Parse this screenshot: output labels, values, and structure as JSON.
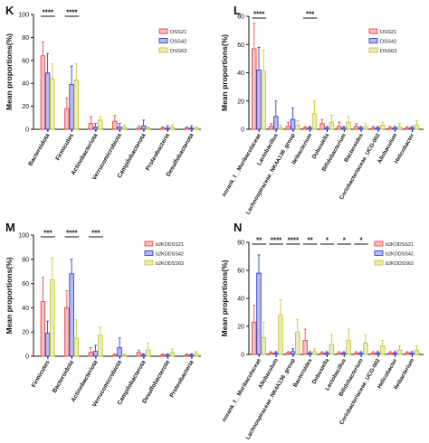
{
  "colors": {
    "dss21": "#e8474c",
    "dss42": "#2d3fd6",
    "dss63": "#c8c63a"
  },
  "chart_data": [
    {
      "panel": "K",
      "type": "bar",
      "ylabel": "Mean proportions(%)",
      "ylim": [
        0,
        100
      ],
      "yticks": [
        "0",
        "20",
        "40",
        "60",
        "80",
        "100"
      ],
      "categories": [
        "Bacteroidota",
        "Firmicutes",
        "Actinobacteriota",
        "Verrucomicrobiota",
        "Campilobacterota",
        "Proteobacteria",
        "Desulfobacterota"
      ],
      "series": [
        {
          "name": "DSS21",
          "values": [
            64,
            18,
            5,
            7,
            1,
            1,
            1
          ],
          "errors": [
            12,
            9,
            6,
            5,
            2,
            1,
            1
          ]
        },
        {
          "name": "DSS42",
          "values": [
            49,
            39,
            2,
            2,
            3,
            1,
            1
          ],
          "errors": [
            17,
            16,
            3,
            3,
            5,
            2,
            2
          ]
        },
        {
          "name": "DSS63",
          "values": [
            44,
            43,
            8,
            2,
            1,
            2,
            1
          ],
          "errors": [
            13,
            14,
            3,
            2,
            1,
            2,
            1
          ]
        }
      ],
      "significance": [
        {
          "text": "****",
          "from": 0,
          "to": 0
        },
        {
          "text": "****",
          "from": 1,
          "to": 1
        }
      ],
      "legend": "top-right"
    },
    {
      "panel": "L",
      "type": "bar",
      "ylabel": "Mean proportions(%)",
      "ylim": [
        0,
        80
      ],
      "yticks": [
        "0",
        "20",
        "40",
        "60",
        "80"
      ],
      "categories": [
        "norank_f__Muribaculaceae",
        "Lactobacillus",
        "Lachnospiraceae_NK4A136_group",
        "Ileibacterium",
        "Dubosiella",
        "Bifidobacterium",
        "Bacteroides",
        "Coriobacteriaceae_UCG-002",
        "Allobaculum",
        "Helicobacter"
      ],
      "series": [
        {
          "name": "DSS21",
          "values": [
            57,
            2,
            2,
            1,
            4,
            2,
            2,
            1,
            1,
            1
          ],
          "errors": [
            18,
            2,
            3,
            1,
            3,
            3,
            2,
            1,
            1,
            1
          ]
        },
        {
          "name": "DSS42",
          "values": [
            42,
            9,
            7,
            1,
            1,
            1,
            1,
            1,
            1,
            1
          ],
          "errors": [
            16,
            11,
            8,
            1,
            1,
            1,
            1,
            1,
            1,
            1
          ]
        },
        {
          "name": "DSS63",
          "values": [
            41,
            1,
            3,
            11,
            5,
            5,
            2,
            3,
            2,
            3
          ],
          "errors": [
            15,
            2,
            3,
            9,
            5,
            4,
            2,
            2,
            2,
            3
          ]
        }
      ],
      "significance": [
        {
          "text": "****",
          "from": 0,
          "to": 0
        },
        {
          "text": "***",
          "from": 3,
          "to": 3
        }
      ],
      "legend": "top-right"
    },
    {
      "panel": "M",
      "type": "bar",
      "ylabel": "Mean proportions(%)",
      "ylim": [
        0,
        100
      ],
      "yticks": [
        "0",
        "20",
        "40",
        "60",
        "80",
        "100"
      ],
      "categories": [
        "Firmicutes",
        "Bacteroidota",
        "Actinobacteriota",
        "Verrucomicrobiota",
        "Campilobacterota",
        "Desulfobacterota",
        "Proteobacteria"
      ],
      "series": [
        {
          "name": "b2KODSS21",
          "values": [
            45,
            40,
            3,
            1,
            3,
            1,
            1
          ],
          "errors": [
            20,
            14,
            4,
            1,
            2,
            1,
            1
          ]
        },
        {
          "name": "b2KODSS42",
          "values": [
            19,
            68,
            4,
            7,
            1,
            1,
            1
          ],
          "errors": [
            10,
            12,
            5,
            8,
            1,
            1,
            1
          ]
        },
        {
          "name": "b2KODSS63",
          "values": [
            63,
            15,
            17,
            1,
            5,
            3,
            2
          ],
          "errors": [
            18,
            15,
            7,
            1,
            6,
            3,
            2
          ]
        }
      ],
      "significance": [
        {
          "text": "***",
          "from": 0,
          "to": 0
        },
        {
          "text": "****",
          "from": 1,
          "to": 1
        },
        {
          "text": "***",
          "from": 2,
          "to": 2
        }
      ],
      "legend": "top-right"
    },
    {
      "panel": "N",
      "type": "bar",
      "ylabel": "Mean proportions(%)",
      "ylim": [
        0,
        80
      ],
      "yticks": [
        "0",
        "20",
        "40",
        "60",
        "80"
      ],
      "categories": [
        "norank_f__Muribaculaceae",
        "Allobaculum",
        "Lachnospiraceae_NK4A136_group",
        "Bacteroides",
        "Dubosiella",
        "Lactobacillus",
        "Bifidobacterium",
        "Coriobacteriaceae_UCG-002",
        "Helicobacter",
        "Ileibacterium"
      ],
      "series": [
        {
          "name": "b2KODSS21",
          "values": [
            23,
            1,
            1,
            10,
            1,
            1,
            1,
            1,
            1,
            1
          ],
          "errors": [
            12,
            1,
            1,
            8,
            1,
            1,
            1,
            1,
            1,
            1
          ]
        },
        {
          "name": "b2KODSS42",
          "values": [
            58,
            1,
            2,
            1,
            1,
            1,
            1,
            1,
            1,
            1
          ],
          "errors": [
            13,
            1,
            2,
            1,
            1,
            1,
            1,
            1,
            1,
            1
          ]
        },
        {
          "name": "b2KODSS63",
          "values": [
            12,
            28,
            16,
            2,
            7,
            10,
            8,
            6,
            3,
            3
          ],
          "errors": [
            11,
            11,
            9,
            2,
            7,
            8,
            6,
            4,
            3,
            3
          ]
        }
      ],
      "significance": [
        {
          "text": "**",
          "from": 0,
          "to": 0
        },
        {
          "text": "****",
          "from": 1,
          "to": 1
        },
        {
          "text": "****",
          "from": 2,
          "to": 2
        },
        {
          "text": "**",
          "from": 3,
          "to": 3
        },
        {
          "text": "*",
          "from": 4,
          "to": 4
        },
        {
          "text": "*",
          "from": 5,
          "to": 5
        },
        {
          "text": "*",
          "from": 6,
          "to": 6
        }
      ],
      "legend": "top-right"
    }
  ]
}
